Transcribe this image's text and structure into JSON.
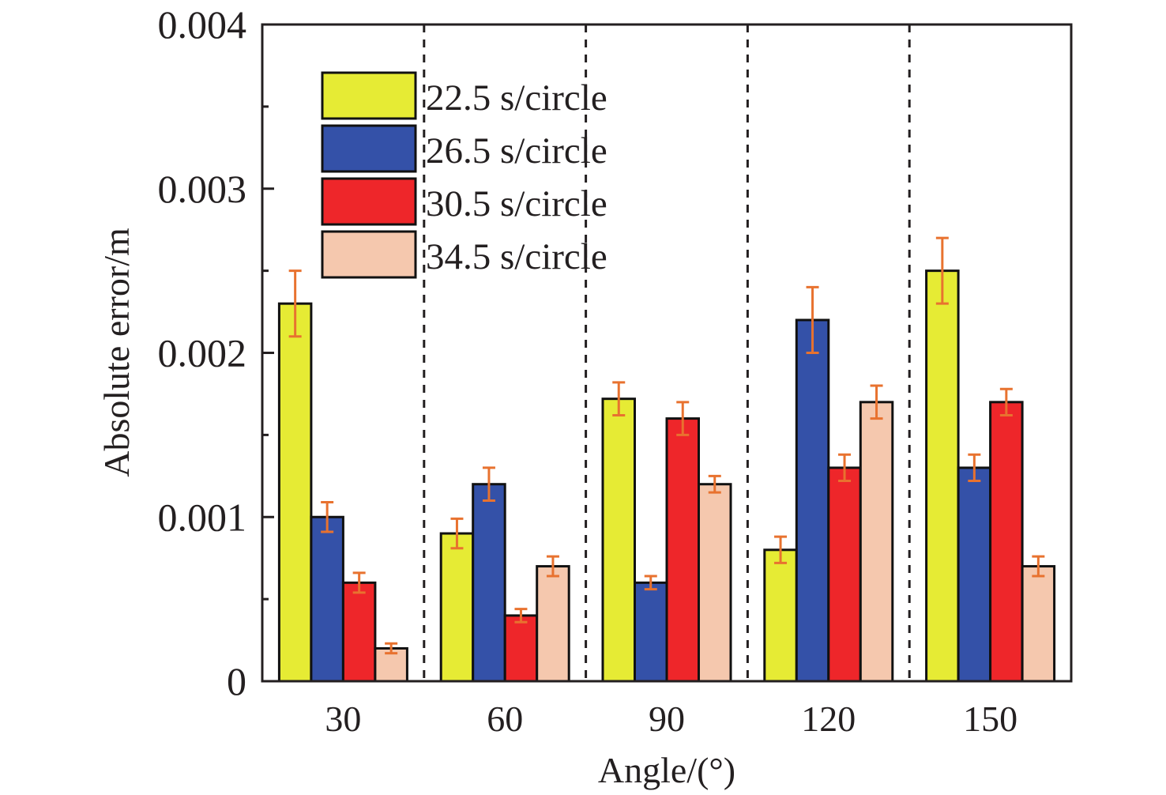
{
  "chart_data": {
    "type": "bar",
    "title": "",
    "xlabel": "Angle/(°)",
    "ylabel": "Absolute error/m",
    "ylim": [
      0,
      0.004
    ],
    "yticks": [
      0,
      0.001,
      0.002,
      0.003,
      0.004
    ],
    "ytick_labels": [
      "0",
      "0.001",
      "0.002",
      "0.003",
      "0.004"
    ],
    "yminor_step": 0.0005,
    "categories": [
      "30",
      "60",
      "90",
      "120",
      "150"
    ],
    "grid": false,
    "group_separators": "dashed vertical lines between groups",
    "legend_position": "top-left",
    "error_bar_color": "#e8722f",
    "series": [
      {
        "name": "22.5 s/circle",
        "color": "#e6eb34",
        "values": [
          0.0023,
          0.0009,
          0.00172,
          0.0008,
          0.0025
        ],
        "error": [
          0.0002,
          9e-05,
          0.0001,
          8e-05,
          0.0002
        ]
      },
      {
        "name": "26.5 s/circle",
        "color": "#3451a8",
        "values": [
          0.001,
          0.0012,
          0.0006,
          0.0022,
          0.0013
        ],
        "error": [
          9e-05,
          0.0001,
          4e-05,
          0.0002,
          8e-05
        ]
      },
      {
        "name": "30.5 s/circle",
        "color": "#ee262a",
        "values": [
          0.0006,
          0.0004,
          0.0016,
          0.0013,
          0.0017
        ],
        "error": [
          6e-05,
          4e-05,
          0.0001,
          8e-05,
          8e-05
        ]
      },
      {
        "name": "34.5 s/circle",
        "color": "#f5c8ae",
        "values": [
          0.0002,
          0.0007,
          0.0012,
          0.0017,
          0.0007
        ],
        "error": [
          3e-05,
          6e-05,
          5e-05,
          0.0001,
          6e-05
        ]
      }
    ]
  }
}
